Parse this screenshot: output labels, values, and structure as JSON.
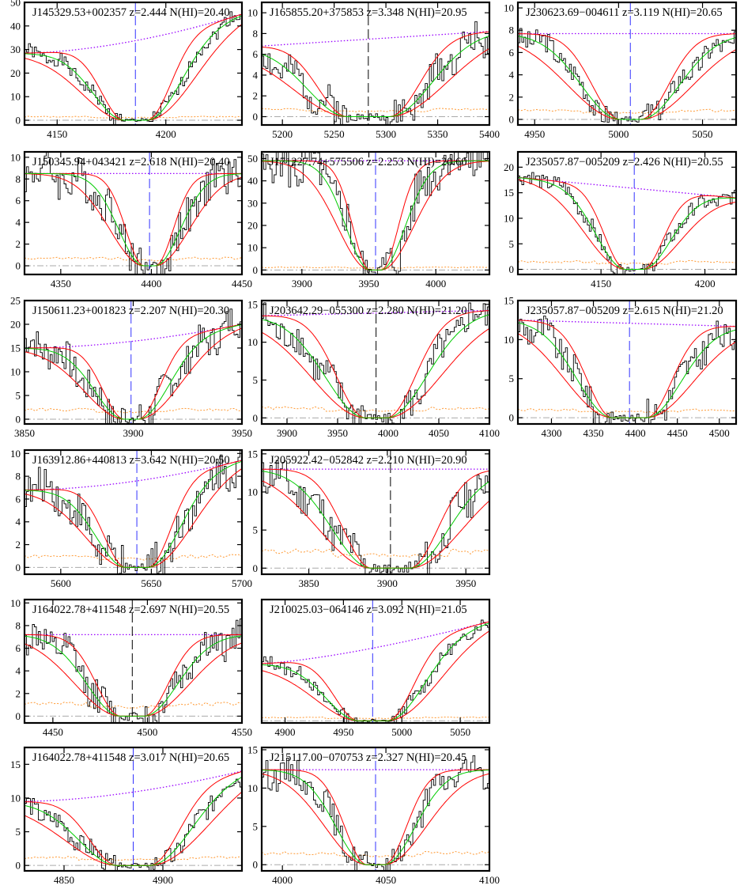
{
  "figure": {
    "description_free": true,
    "colors": {
      "frame": "#000000",
      "spectrum": "#000000",
      "fit_center": "#00cc00",
      "fit_bounds": "#ff0000",
      "continuum": "#9900ff",
      "error": "#ff9933",
      "zero": "#aaaaaa",
      "z_marker_dark": "#000000",
      "z_marker_blue": "#3333ff"
    }
  },
  "chart_data": [
    {
      "type": "line",
      "title": "J145329.53+002357 z=2.444 N(HI)=20.40",
      "xlim": [
        4135,
        4235
      ],
      "ylim": [
        -2,
        50
      ],
      "xticks": [
        4150,
        4200
      ],
      "yticks": [
        0,
        10,
        20,
        30,
        40,
        50
      ],
      "center": 4186,
      "core": 5.0,
      "width": 15,
      "cont_start": 28.5,
      "cont_end": 45,
      "cont_curve": 1.7,
      "err_level": 1.5,
      "noise": 3,
      "seed": 1,
      "marker_color": "blue",
      "series": [
        {
          "name": "spectrum"
        },
        {
          "name": "Voigt fit"
        },
        {
          "name": "fit +/- 1 sigma"
        },
        {
          "name": "continuum"
        },
        {
          "name": "error"
        }
      ]
    },
    {
      "type": "line",
      "title": "J165855.20+375853 z=3.348 N(HI)=20.95",
      "xlim": [
        5180,
        5400
      ],
      "ylim": [
        -0.8,
        11
      ],
      "xticks": [
        5200,
        5250,
        5300,
        5350,
        5400
      ],
      "yticks": [
        0,
        2,
        4,
        6,
        8,
        10
      ],
      "center": 5283,
      "core": 20,
      "width": 40,
      "cont_start": 6.8,
      "cont_end": 8.2,
      "cont_curve": 1.0,
      "err_level": 0.7,
      "noise": 1.6,
      "seed": 2,
      "marker_color": "dark",
      "series": [
        {
          "name": "spectrum"
        },
        {
          "name": "Voigt fit"
        },
        {
          "name": "fit +/- 1 sigma"
        },
        {
          "name": "continuum"
        },
        {
          "name": "error"
        }
      ]
    },
    {
      "type": "line",
      "title": "J230623.69−004611 z=3.119 N(HI)=20.65",
      "xlim": [
        4940,
        5070
      ],
      "ylim": [
        -0.5,
        10.5
      ],
      "xticks": [
        4950,
        5000,
        5050
      ],
      "yticks": [
        0,
        2,
        4,
        6,
        8,
        10
      ],
      "center": 5007,
      "core": 6,
      "width": 23,
      "cont_start": 7.7,
      "cont_end": 7.7,
      "cont_curve": 1.0,
      "err_level": 0.8,
      "noise": 1.0,
      "seed": 3,
      "marker_color": "blue",
      "series": [
        {
          "name": "spectrum"
        },
        {
          "name": "Voigt fit"
        },
        {
          "name": "fit +/- 1 sigma"
        },
        {
          "name": "continuum"
        },
        {
          "name": "error"
        }
      ]
    },
    {
      "type": "line",
      "title": "J150345.94+043421 z=2.618 N(HI)=20.40",
      "xlim": [
        4330,
        4450
      ],
      "ylim": [
        -0.8,
        10.5
      ],
      "xticks": [
        4350,
        4400,
        4450
      ],
      "yticks": [
        0,
        2,
        4,
        6,
        8,
        10
      ],
      "center": 4399,
      "core": 3,
      "width": 14,
      "cont_start": 8.5,
      "cont_end": 8.5,
      "cont_curve": 1.0,
      "err_level": 0.7,
      "noise": 1.8,
      "seed": 4,
      "marker_color": "blue",
      "series": [
        {
          "name": "spectrum"
        },
        {
          "name": "Voigt fit"
        },
        {
          "name": "fit +/- 1 sigma"
        },
        {
          "name": "continuum"
        },
        {
          "name": "error"
        }
      ]
    },
    {
      "type": "line",
      "title": "J171227.74+575506 z=2.253 N(HI)=20.60",
      "xlim": [
        3870,
        4040
      ],
      "ylim": [
        -2,
        53
      ],
      "xticks": [
        3900,
        3950,
        4000
      ],
      "yticks": [
        0,
        10,
        20,
        30,
        40,
        50
      ],
      "center": 3955,
      "core": 4,
      "width": 18,
      "cont_start": 49,
      "cont_end": 49,
      "cont_curve": 1.0,
      "err_level": 1.2,
      "noise": 10,
      "seed": 5,
      "marker_color": "blue",
      "series": [
        {
          "name": "spectrum"
        },
        {
          "name": "Voigt fit"
        },
        {
          "name": "fit +/- 1 sigma"
        },
        {
          "name": "continuum"
        },
        {
          "name": "error"
        }
      ]
    },
    {
      "type": "line",
      "title": "J235057.87−005209 z=2.426 N(HI)=20.55",
      "xlim": [
        4110,
        4215
      ],
      "ylim": [
        -1,
        23
      ],
      "xticks": [
        4150,
        4200
      ],
      "yticks": [
        0,
        5,
        10,
        15,
        20
      ],
      "center": 4166,
      "core": 4,
      "width": 14,
      "cont_start": 18,
      "cont_end": 14,
      "cont_curve": 1.0,
      "err_level": 1.5,
      "noise": 1.5,
      "seed": 6,
      "marker_color": "blue",
      "series": [
        {
          "name": "spectrum"
        },
        {
          "name": "Voigt fit"
        },
        {
          "name": "fit +/- 1 sigma"
        },
        {
          "name": "continuum"
        },
        {
          "name": "error"
        }
      ]
    },
    {
      "type": "line",
      "title": "J150611.23+001823 z=2.207 N(HI)=20.30",
      "xlim": [
        3850,
        3950
      ],
      "ylim": [
        -1,
        25
      ],
      "xticks": [
        3850,
        3900,
        3950
      ],
      "yticks": [
        0,
        5,
        10,
        15,
        20,
        25
      ],
      "center": 3899,
      "core": 3,
      "width": 14,
      "cont_start": 15,
      "cont_end": 20,
      "cont_curve": 1.8,
      "err_level": 2,
      "noise": 3.5,
      "seed": 7,
      "marker_color": "blue",
      "series": [
        {
          "name": "spectrum"
        },
        {
          "name": "Voigt fit"
        },
        {
          "name": "fit +/- 1 sigma"
        },
        {
          "name": "continuum"
        },
        {
          "name": "error"
        }
      ]
    },
    {
      "type": "line",
      "title": "J203642.29−055300 z=2.280 N(HI)=21.20",
      "xlim": [
        3875,
        4100
      ],
      "ylim": [
        -0.8,
        15.5
      ],
      "xticks": [
        3900,
        3950,
        4000,
        4050,
        4100
      ],
      "yticks": [
        0,
        5,
        10,
        15
      ],
      "center": 3988,
      "core": 10,
      "width": 40,
      "cont_start": 13.5,
      "cont_end": 14.2,
      "cont_curve": 1.0,
      "err_level": 1.3,
      "noise": 2.2,
      "seed": 8,
      "marker_color": "dark",
      "series": [
        {
          "name": "spectrum"
        },
        {
          "name": "Voigt fit"
        },
        {
          "name": "fit +/- 1 sigma"
        },
        {
          "name": "continuum"
        },
        {
          "name": "error"
        }
      ]
    },
    {
      "type": "line",
      "title": "J235057.87−005209 z=2.615 N(HI)=21.20",
      "xlim": [
        4260,
        4520
      ],
      "ylim": [
        -0.8,
        15
      ],
      "xticks": [
        4300,
        4350,
        4400,
        4450,
        4500
      ],
      "yticks": [
        0,
        5,
        10,
        15
      ],
      "center": 4393,
      "core": 20,
      "width": 42,
      "cont_start": 12.5,
      "cont_end": 11.7,
      "cont_curve": 1.0,
      "err_level": 1.0,
      "noise": 2,
      "seed": 9,
      "marker_color": "blue",
      "series": [
        {
          "name": "spectrum"
        },
        {
          "name": "Voigt fit"
        },
        {
          "name": "fit +/- 1 sigma"
        },
        {
          "name": "continuum"
        },
        {
          "name": "error"
        }
      ]
    },
    {
      "type": "line",
      "title": "J163912.86+440813 z=3.642 N(HI)=20.50",
      "xlim": [
        5580,
        5700
      ],
      "ylim": [
        -0.6,
        10.3
      ],
      "xticks": [
        5600,
        5650,
        5700
      ],
      "yticks": [
        0,
        2,
        4,
        6,
        8,
        10
      ],
      "center": 5642,
      "core": 6,
      "width": 17,
      "cont_start": 6.8,
      "cont_end": 9.4,
      "cont_curve": 1.8,
      "err_level": 1.0,
      "noise": 1.7,
      "seed": 10,
      "marker_color": "blue",
      "series": [
        {
          "name": "spectrum"
        },
        {
          "name": "Voigt fit"
        },
        {
          "name": "fit +/- 1 sigma"
        },
        {
          "name": "continuum"
        },
        {
          "name": "error"
        }
      ]
    },
    {
      "type": "line",
      "title": "J205922.42−052842 z=2.210 N(HI)=20.90",
      "xlim": [
        3820,
        3965
      ],
      "ylim": [
        -0.8,
        15.5
      ],
      "xticks": [
        3850,
        3900,
        3950
      ],
      "yticks": [
        0,
        5,
        10,
        15
      ],
      "center": 3902,
      "core": 12,
      "width": 25,
      "cont_start": 13,
      "cont_end": 13,
      "cont_curve": 1.0,
      "err_level": 2.2,
      "noise": 2.5,
      "seed": 11,
      "marker_color": "dark",
      "series": [
        {
          "name": "spectrum"
        },
        {
          "name": "Voigt fit"
        },
        {
          "name": "fit +/- 1 sigma"
        },
        {
          "name": "continuum"
        },
        {
          "name": "error"
        }
      ]
    },
    {
      "type": "line",
      "title": "J164022.78+411548 z=2.697 N(HI)=20.55",
      "xlim": [
        4435,
        4550
      ],
      "ylim": [
        -0.6,
        10.3
      ],
      "xticks": [
        4450,
        4500,
        4550
      ],
      "yticks": [
        0,
        2,
        4,
        6,
        8,
        10
      ],
      "center": 4492,
      "core": 6,
      "width": 18,
      "cont_start": 7.2,
      "cont_end": 7.2,
      "cont_curve": 1.0,
      "err_level": 1.1,
      "noise": 1.5,
      "seed": 12,
      "marker_color": "dark",
      "series": [
        {
          "name": "spectrum"
        },
        {
          "name": "Voigt fit"
        },
        {
          "name": "fit +/- 1 sigma"
        },
        {
          "name": "continuum"
        },
        {
          "name": "error"
        }
      ]
    },
    {
      "type": "line",
      "title": "J210025.03−064146 z=3.092 N(HI)=21.05",
      "xlim": [
        4880,
        5075
      ],
      "ylim": [
        -1,
        55
      ],
      "xticks": [
        4900,
        4950,
        5000,
        5050
      ],
      "yticks": [],
      "center": 4975,
      "core": 12,
      "width": 30,
      "cont_start": 26,
      "cont_end": 45,
      "cont_curve": 1.4,
      "err_level": 1.5,
      "noise": 3,
      "seed": 13,
      "marker_color": "blue",
      "series": [
        {
          "name": "spectrum"
        },
        {
          "name": "Voigt fit"
        },
        {
          "name": "fit +/- 1 sigma"
        },
        {
          "name": "continuum"
        },
        {
          "name": "error"
        }
      ]
    },
    {
      "type": "line",
      "title": "J164022.78+411548 z=3.017 N(HI)=20.65",
      "xlim": [
        4830,
        4940
      ],
      "ylim": [
        -0.8,
        17.5
      ],
      "xticks": [
        4850,
        4900
      ],
      "yticks": [
        0,
        5,
        10,
        15
      ],
      "center": 4885,
      "core": 8,
      "width": 20,
      "cont_start": 9.5,
      "cont_end": 14,
      "cont_curve": 1.7,
      "err_level": 1.2,
      "noise": 1.5,
      "seed": 14,
      "marker_color": "blue",
      "series": [
        {
          "name": "spectrum"
        },
        {
          "name": "Voigt fit"
        },
        {
          "name": "fit +/- 1 sigma"
        },
        {
          "name": "continuum"
        },
        {
          "name": "error"
        }
      ]
    },
    {
      "type": "line",
      "title": "J215117.00−070753 z=2.327 N(HI)=20.45",
      "xlim": [
        3990,
        4100
      ],
      "ylim": [
        -0.8,
        15.3
      ],
      "xticks": [
        4000,
        4050,
        4100
      ],
      "yticks": [
        0,
        5,
        10,
        15
      ],
      "center": 4045,
      "core": 4,
      "width": 15,
      "cont_start": 12.4,
      "cont_end": 12.4,
      "cont_curve": 1.0,
      "err_level": 1.5,
      "noise": 1.8,
      "seed": 15,
      "marker_color": "blue",
      "series": [
        {
          "name": "spectrum"
        },
        {
          "name": "Voigt fit"
        },
        {
          "name": "fit +/- 1 sigma"
        },
        {
          "name": "continuum"
        },
        {
          "name": "error"
        }
      ]
    }
  ]
}
